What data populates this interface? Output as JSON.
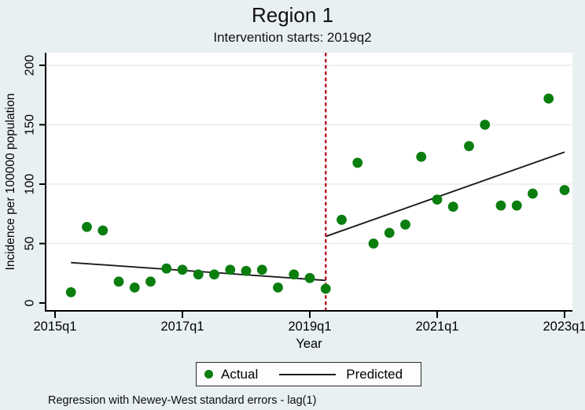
{
  "header": {
    "title": "Region 1",
    "subtitle": "Intervention starts: 2019q2"
  },
  "legend": {
    "actual_label": "Actual",
    "predicted_label": "Predicted"
  },
  "footer": {
    "note": "Regression with Newey-West standard errors - lag(1)"
  },
  "colors": {
    "figure_background": "#e9f0f2",
    "plot_background": "#ffffff",
    "gridline": "#ebebeb",
    "axis": "#000000",
    "tick_text": "#000000",
    "actual_point": "#0a7e0f",
    "predicted_line": "#1c1c1c",
    "intervention_line": "#b11622"
  },
  "chart_data": {
    "type": "scatter",
    "title": "Region 1",
    "subtitle": "Intervention starts: 2019q2",
    "xlabel": "Year",
    "ylabel": "Incidence per 100000 population",
    "grid": true,
    "legend_position": "bottom",
    "x_unit": "quarters since 2015q1",
    "xlim_quarters": [
      -0.6,
      32.5
    ],
    "ylim": [
      0,
      210
    ],
    "y_ticks": [
      0,
      50,
      100,
      150,
      200
    ],
    "x_ticks": [
      {
        "q": 0,
        "label": "2015q1"
      },
      {
        "q": 8,
        "label": "2017q1"
      },
      {
        "q": 16,
        "label": "2019q1"
      },
      {
        "q": 24,
        "label": "2021q1"
      },
      {
        "q": 32,
        "label": "2023q1"
      }
    ],
    "intervention": {
      "quarter_index": 17,
      "label": "2019q2",
      "style": "dashed-vertical"
    },
    "series": [
      {
        "name": "Actual",
        "type": "scatter",
        "points": [
          {
            "q": 1,
            "period": "2015q2",
            "value": 9
          },
          {
            "q": 2,
            "period": "2015q3",
            "value": 64
          },
          {
            "q": 3,
            "period": "2015q4",
            "value": 61
          },
          {
            "q": 4,
            "period": "2016q1",
            "value": 18
          },
          {
            "q": 5,
            "period": "2016q2",
            "value": 13
          },
          {
            "q": 6,
            "period": "2016q3",
            "value": 18
          },
          {
            "q": 7,
            "period": "2016q4",
            "value": 29
          },
          {
            "q": 8,
            "period": "2017q1",
            "value": 28
          },
          {
            "q": 9,
            "period": "2017q2",
            "value": 24
          },
          {
            "q": 10,
            "period": "2017q3",
            "value": 24
          },
          {
            "q": 11,
            "period": "2017q4",
            "value": 28
          },
          {
            "q": 12,
            "period": "2018q1",
            "value": 27
          },
          {
            "q": 13,
            "period": "2018q2",
            "value": 28
          },
          {
            "q": 14,
            "period": "2018q3",
            "value": 13
          },
          {
            "q": 15,
            "period": "2018q4",
            "value": 24
          },
          {
            "q": 16,
            "period": "2019q1",
            "value": 21
          },
          {
            "q": 17,
            "period": "2019q2",
            "value": 12
          },
          {
            "q": 18,
            "period": "2019q3",
            "value": 70
          },
          {
            "q": 19,
            "period": "2019q4",
            "value": 118
          },
          {
            "q": 20,
            "period": "2020q1",
            "value": 50
          },
          {
            "q": 21,
            "period": "2020q2",
            "value": 59
          },
          {
            "q": 22,
            "period": "2020q3",
            "value": 66
          },
          {
            "q": 23,
            "period": "2020q4",
            "value": 123
          },
          {
            "q": 24,
            "period": "2021q1",
            "value": 87
          },
          {
            "q": 25,
            "period": "2021q2",
            "value": 81
          },
          {
            "q": 26,
            "period": "2021q3",
            "value": 132
          },
          {
            "q": 27,
            "period": "2021q4",
            "value": 150
          },
          {
            "q": 28,
            "period": "2022q1",
            "value": 82
          },
          {
            "q": 29,
            "period": "2022q2",
            "value": 82
          },
          {
            "q": 30,
            "period": "2022q3",
            "value": 92
          },
          {
            "q": 31,
            "period": "2022q4",
            "value": 172
          },
          {
            "q": 32,
            "period": "2023q1",
            "value": 95
          }
        ]
      },
      {
        "name": "Predicted",
        "type": "line",
        "segments": [
          {
            "from": {
              "q": 1,
              "value": 34
            },
            "to": {
              "q": 17,
              "value": 19
            }
          },
          {
            "from": {
              "q": 17,
              "value": 56
            },
            "to": {
              "q": 32,
              "value": 127
            }
          }
        ]
      }
    ]
  }
}
